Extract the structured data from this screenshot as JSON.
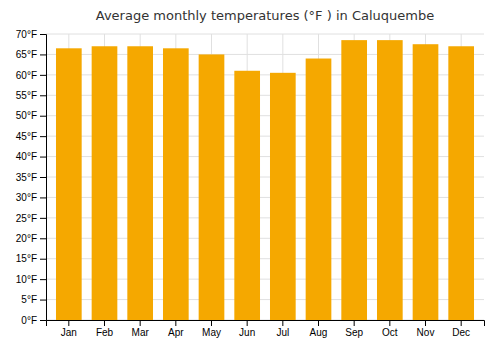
{
  "chart_data": {
    "type": "bar",
    "title": "Average monthly temperatures (°F ) in Caluquembe",
    "categories": [
      "Jan",
      "Feb",
      "Mar",
      "Apr",
      "May",
      "Jun",
      "Jul",
      "Aug",
      "Sep",
      "Oct",
      "Nov",
      "Dec"
    ],
    "values": [
      66.5,
      67.0,
      67.0,
      66.5,
      65.0,
      61.0,
      60.5,
      64.0,
      68.5,
      68.5,
      67.5,
      67.0
    ],
    "color": "#F5A800",
    "ylim": [
      0,
      70
    ],
    "yticks": [
      {
        "value": 0,
        "label": "0°F"
      },
      {
        "value": 5,
        "label": "5°F"
      },
      {
        "value": 10,
        "label": "10°F"
      },
      {
        "value": 15,
        "label": "15°F"
      },
      {
        "value": 20,
        "label": "20°F"
      },
      {
        "value": 25,
        "label": "25°F"
      },
      {
        "value": 30,
        "label": "30°F"
      },
      {
        "value": 35,
        "label": "35°F"
      },
      {
        "value": 40,
        "label": "40°F"
      },
      {
        "value": 45,
        "label": "45°F"
      },
      {
        "value": 50,
        "label": "50°F"
      },
      {
        "value": 55,
        "label": "55°F"
      },
      {
        "value": 60,
        "label": "60°F"
      },
      {
        "value": 65,
        "label": "65°F"
      },
      {
        "value": 70,
        "label": "70°F"
      }
    ],
    "grid": true
  }
}
